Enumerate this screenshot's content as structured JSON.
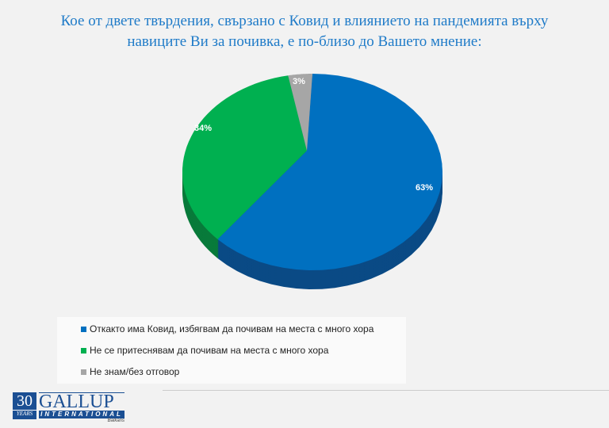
{
  "chart_data": {
    "type": "pie",
    "title": "Кое от двете твърдения, свързано с Ковид и влиянието на пандемията върху навиците Ви за почивка, е по-близо до Вашето мнение:",
    "title_lines": [
      "Кое от двете твърдения, свързано с Ковид и влиянието на пандемията върху",
      "навиците Ви за почивка, е по-близо до Вашето мнение:"
    ],
    "categories": [
      "Откакто има Ковид, избягвам да почивам на места с много хора",
      "Не се притеснявам да почивам на места с много хора",
      "Не знам/без отговор"
    ],
    "values": [
      63,
      34,
      3
    ],
    "labels": [
      "63%",
      "34%",
      "3%"
    ],
    "colors": [
      "#0070c0",
      "#00b050",
      "#a6a6a6"
    ],
    "dark_colors": [
      "#0a4a85",
      "#087a3a",
      "#777777"
    ],
    "legend_position": "bottom-left"
  },
  "logo": {
    "years_num": "30",
    "years": "YEARS",
    "brand": "GALLUP",
    "sub": "INTERNATIONAL",
    "region": "Balkans"
  }
}
